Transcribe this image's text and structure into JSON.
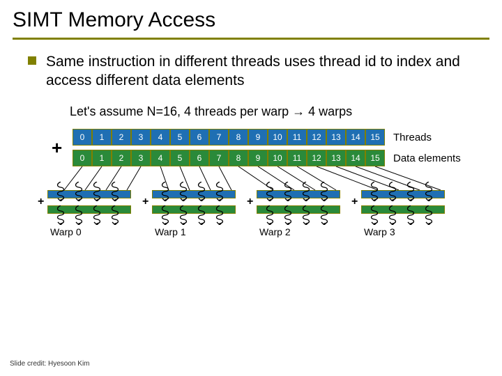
{
  "title": "SIMT Memory Access",
  "bullet_text": "Same instruction in different threads uses thread id to index and access different data elements",
  "assume": "Let's assume N=16, 4 threads per warp → 4 warps",
  "plus": "+",
  "threads": {
    "label": "Threads",
    "values": [
      "0",
      "1",
      "2",
      "3",
      "4",
      "5",
      "6",
      "7",
      "8",
      "9",
      "10",
      "11",
      "12",
      "13",
      "14",
      "15"
    ]
  },
  "dataelems": {
    "label": "Data elements",
    "values": [
      "0",
      "1",
      "2",
      "3",
      "4",
      "5",
      "6",
      "7",
      "8",
      "9",
      "10",
      "11",
      "12",
      "13",
      "14",
      "15"
    ]
  },
  "warps": [
    {
      "name": "Warp 0"
    },
    {
      "name": "Warp 1"
    },
    {
      "name": "Warp 2"
    },
    {
      "name": "Warp 3"
    }
  ],
  "colors": {
    "blue": "#1f6fb3",
    "green": "#2a8a3a",
    "olive": "#808000"
  },
  "credit": "Slide credit: Hyesoon Kim"
}
